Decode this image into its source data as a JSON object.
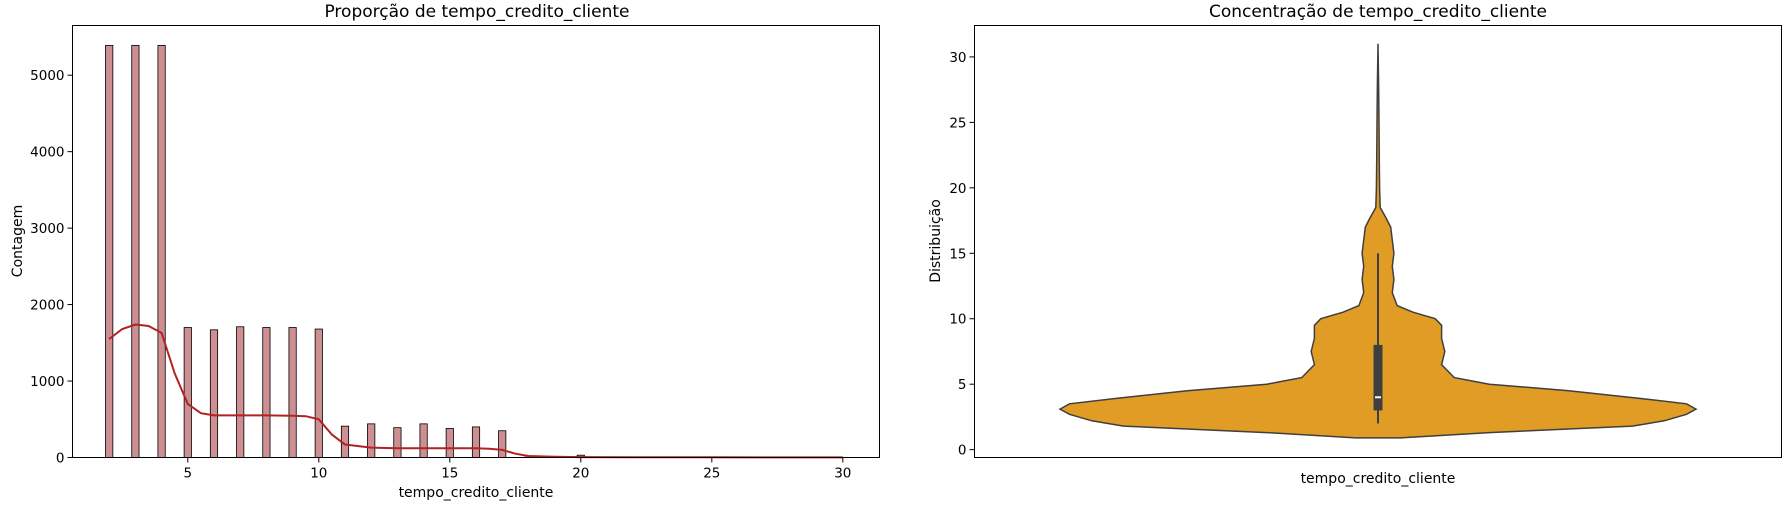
{
  "chart_data": [
    {
      "type": "bar",
      "subtype": "histogram_with_kde",
      "title": "Proporção de tempo_credito_cliente",
      "xlabel": "tempo_credito_cliente",
      "ylabel": "Contagem",
      "xlim": [
        0.6,
        31.4
      ],
      "ylim": [
        0,
        5650
      ],
      "xticks": [
        5,
        10,
        15,
        20,
        25,
        30
      ],
      "yticks": [
        0,
        1000,
        2000,
        3000,
        4000,
        5000
      ],
      "grid": false,
      "bin_width": 0.28,
      "x": [
        2,
        3,
        4,
        5,
        6,
        7,
        8,
        9,
        10,
        11,
        12,
        13,
        14,
        15,
        16,
        17,
        18,
        19,
        20,
        21,
        22,
        23,
        24,
        25,
        26,
        27,
        28,
        29,
        30
      ],
      "values": [
        5390,
        5390,
        5390,
        1700,
        1670,
        1710,
        1700,
        1700,
        1680,
        410,
        440,
        390,
        440,
        380,
        400,
        350,
        4,
        4,
        30,
        3,
        3,
        3,
        3,
        2,
        2,
        2,
        2,
        2,
        2
      ],
      "kde": {
        "x": [
          2,
          2.5,
          3,
          3.5,
          4,
          4.5,
          5,
          5.5,
          6,
          7,
          8,
          9,
          9.5,
          10,
          10.5,
          11,
          12,
          13,
          14,
          15,
          16,
          16.5,
          17,
          17.5,
          18,
          19,
          20,
          22,
          25,
          30
        ],
        "y": [
          1550,
          1680,
          1740,
          1720,
          1630,
          1100,
          700,
          580,
          550,
          550,
          550,
          545,
          540,
          500,
          300,
          170,
          130,
          120,
          120,
          120,
          120,
          115,
          100,
          50,
          20,
          10,
          5,
          3,
          2,
          1
        ]
      },
      "bar_color": "#cd8f91",
      "kde_color": "#b22222"
    },
    {
      "type": "violin",
      "title": "Concentração de tempo_credito_cliente",
      "xlabel": "tempo_credito_cliente",
      "ylabel": "Distribuição",
      "ylim": [
        -0.6,
        32.4
      ],
      "yticks": [
        0,
        5,
        10,
        15,
        20,
        25,
        30
      ],
      "grid": false,
      "fill_color": "#e09c24",
      "profile": [
        {
          "y": 0.9,
          "w": 0.07
        },
        {
          "y": 1.3,
          "w": 0.35
        },
        {
          "y": 1.8,
          "w": 0.8
        },
        {
          "y": 2.2,
          "w": 0.9
        },
        {
          "y": 2.7,
          "w": 0.97
        },
        {
          "y": 3.1,
          "w": 1.0
        },
        {
          "y": 3.5,
          "w": 0.97
        },
        {
          "y": 3.9,
          "w": 0.83
        },
        {
          "y": 4.5,
          "w": 0.6
        },
        {
          "y": 5.0,
          "w": 0.35
        },
        {
          "y": 5.5,
          "w": 0.24
        },
        {
          "y": 6.5,
          "w": 0.2
        },
        {
          "y": 7.5,
          "w": 0.21
        },
        {
          "y": 8.5,
          "w": 0.2
        },
        {
          "y": 9.5,
          "w": 0.2
        },
        {
          "y": 10.0,
          "w": 0.18
        },
        {
          "y": 10.5,
          "w": 0.11
        },
        {
          "y": 11.0,
          "w": 0.06
        },
        {
          "y": 12.0,
          "w": 0.045
        },
        {
          "y": 13.0,
          "w": 0.05
        },
        {
          "y": 14.0,
          "w": 0.045
        },
        {
          "y": 15.0,
          "w": 0.05
        },
        {
          "y": 16.0,
          "w": 0.045
        },
        {
          "y": 17.0,
          "w": 0.04
        },
        {
          "y": 17.7,
          "w": 0.025
        },
        {
          "y": 18.5,
          "w": 0.007
        },
        {
          "y": 20.0,
          "w": 0.005
        },
        {
          "y": 22.0,
          "w": 0.004
        },
        {
          "y": 25.0,
          "w": 0.003
        },
        {
          "y": 28.0,
          "w": 0.002
        },
        {
          "y": 31.0,
          "w": 0.0
        }
      ],
      "box": {
        "whisker_low": 2,
        "q1": 3,
        "median": 4,
        "q3": 8,
        "whisker_high": 15
      }
    }
  ]
}
